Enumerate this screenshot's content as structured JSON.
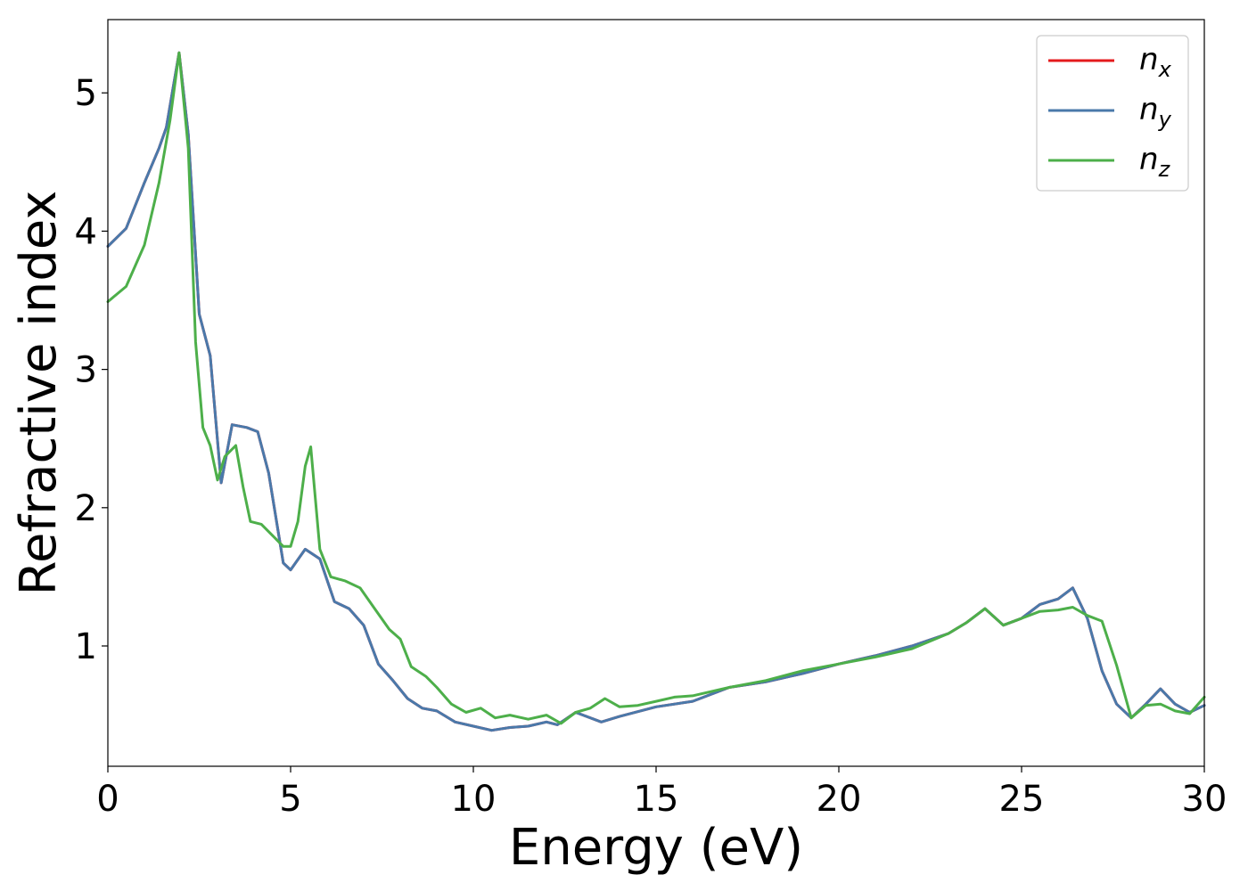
{
  "chart_data": {
    "type": "line",
    "xlabel": "Energy (eV)",
    "ylabel": "Refractive index",
    "xlim": [
      0,
      30
    ],
    "ylim": [
      0.13,
      5.53
    ],
    "xticks": [
      0,
      5,
      10,
      15,
      20,
      25,
      30
    ],
    "yticks": [
      1,
      2,
      3,
      4,
      5
    ],
    "grid": false,
    "legend_position": "top-right",
    "series": [
      {
        "name": "n_x",
        "label_base": "n",
        "label_sub": "x",
        "color": "#e41a1c",
        "x": [
          0,
          0.5,
          1.0,
          1.4,
          1.6,
          1.95,
          2.2,
          2.5,
          2.8,
          3.1,
          3.4,
          3.8,
          4.1,
          4.4,
          4.8,
          5.0,
          5.4,
          5.8,
          6.2,
          6.6,
          7.0,
          7.4,
          7.8,
          8.2,
          8.6,
          9.0,
          9.5,
          10.0,
          10.5,
          11.0,
          11.5,
          12.0,
          12.3,
          12.8,
          13.5,
          14.0,
          15.0,
          16.0,
          17.0,
          18.0,
          19.0,
          20.0,
          21.0,
          22.0,
          23.0,
          23.5,
          24.0,
          24.5,
          25.0,
          25.5,
          26.0,
          26.4,
          26.8,
          27.2,
          27.6,
          28.0,
          28.4,
          28.8,
          29.2,
          29.6,
          30.0
        ],
        "y": [
          3.89,
          4.02,
          4.35,
          4.6,
          4.75,
          5.29,
          4.7,
          3.4,
          3.1,
          2.18,
          2.6,
          2.58,
          2.55,
          2.25,
          1.6,
          1.55,
          1.7,
          1.63,
          1.32,
          1.27,
          1.15,
          0.87,
          0.75,
          0.62,
          0.55,
          0.53,
          0.45,
          0.42,
          0.39,
          0.41,
          0.42,
          0.45,
          0.43,
          0.52,
          0.45,
          0.49,
          0.56,
          0.6,
          0.7,
          0.74,
          0.8,
          0.87,
          0.93,
          1.0,
          1.09,
          1.17,
          1.27,
          1.15,
          1.2,
          1.3,
          1.34,
          1.42,
          1.2,
          0.82,
          0.58,
          0.48,
          0.58,
          0.69,
          0.58,
          0.52,
          0.57
        ]
      },
      {
        "name": "n_y",
        "label_base": "n",
        "label_sub": "y",
        "color": "#4a79aa",
        "x": [
          0,
          0.5,
          1.0,
          1.4,
          1.6,
          1.95,
          2.2,
          2.5,
          2.8,
          3.1,
          3.4,
          3.8,
          4.1,
          4.4,
          4.8,
          5.0,
          5.4,
          5.8,
          6.2,
          6.6,
          7.0,
          7.4,
          7.8,
          8.2,
          8.6,
          9.0,
          9.5,
          10.0,
          10.5,
          11.0,
          11.5,
          12.0,
          12.3,
          12.8,
          13.5,
          14.0,
          15.0,
          16.0,
          17.0,
          18.0,
          19.0,
          20.0,
          21.0,
          22.0,
          23.0,
          23.5,
          24.0,
          24.5,
          25.0,
          25.5,
          26.0,
          26.4,
          26.8,
          27.2,
          27.6,
          28.0,
          28.4,
          28.8,
          29.2,
          29.6,
          30.0
        ],
        "y": [
          3.89,
          4.02,
          4.35,
          4.6,
          4.75,
          5.29,
          4.7,
          3.4,
          3.1,
          2.18,
          2.6,
          2.58,
          2.55,
          2.25,
          1.6,
          1.55,
          1.7,
          1.63,
          1.32,
          1.27,
          1.15,
          0.87,
          0.75,
          0.62,
          0.55,
          0.53,
          0.45,
          0.42,
          0.39,
          0.41,
          0.42,
          0.45,
          0.43,
          0.52,
          0.45,
          0.49,
          0.56,
          0.6,
          0.7,
          0.74,
          0.8,
          0.87,
          0.93,
          1.0,
          1.09,
          1.17,
          1.27,
          1.15,
          1.2,
          1.3,
          1.34,
          1.42,
          1.2,
          0.82,
          0.58,
          0.48,
          0.58,
          0.69,
          0.58,
          0.52,
          0.57
        ]
      },
      {
        "name": "n_z",
        "label_base": "n",
        "label_sub": "z",
        "color": "#4daf4a",
        "x": [
          0,
          0.5,
          1.0,
          1.4,
          1.7,
          1.95,
          2.2,
          2.4,
          2.6,
          2.8,
          3.0,
          3.2,
          3.5,
          3.7,
          3.9,
          4.2,
          4.5,
          4.8,
          5.0,
          5.2,
          5.4,
          5.55,
          5.8,
          6.1,
          6.5,
          6.9,
          7.3,
          7.7,
          8.0,
          8.3,
          8.7,
          9.0,
          9.4,
          9.8,
          10.2,
          10.6,
          11.0,
          11.5,
          12.0,
          12.4,
          12.8,
          13.2,
          13.6,
          14.0,
          14.5,
          15.0,
          15.5,
          16.0,
          16.5,
          17.0,
          18.0,
          19.0,
          20.0,
          21.0,
          22.0,
          23.0,
          23.5,
          24.0,
          24.5,
          25.0,
          25.5,
          26.0,
          26.4,
          26.8,
          27.2,
          27.6,
          28.0,
          28.4,
          28.8,
          29.2,
          29.6,
          30.0
        ],
        "y": [
          3.49,
          3.6,
          3.9,
          4.35,
          4.8,
          5.29,
          4.6,
          3.2,
          2.58,
          2.45,
          2.2,
          2.37,
          2.45,
          2.15,
          1.9,
          1.88,
          1.8,
          1.72,
          1.72,
          1.9,
          2.3,
          2.44,
          1.7,
          1.5,
          1.47,
          1.42,
          1.27,
          1.12,
          1.05,
          0.85,
          0.78,
          0.7,
          0.58,
          0.52,
          0.55,
          0.48,
          0.5,
          0.47,
          0.5,
          0.44,
          0.52,
          0.55,
          0.62,
          0.56,
          0.57,
          0.6,
          0.63,
          0.64,
          0.67,
          0.7,
          0.75,
          0.82,
          0.87,
          0.92,
          0.98,
          1.09,
          1.17,
          1.27,
          1.15,
          1.2,
          1.25,
          1.26,
          1.28,
          1.22,
          1.18,
          0.86,
          0.48,
          0.57,
          0.58,
          0.53,
          0.51,
          0.63
        ]
      }
    ]
  }
}
